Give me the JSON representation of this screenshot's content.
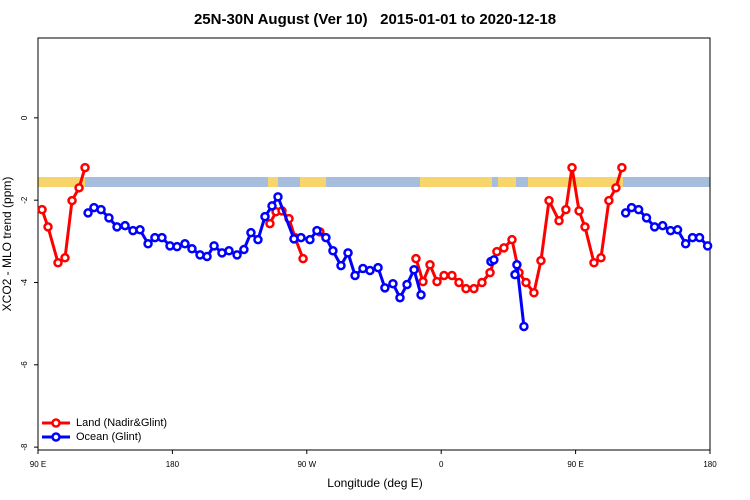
{
  "chart_data": {
    "type": "line",
    "title": "25N-30N August (Ver 10)   2015-01-01 to 2020-12-18",
    "x_label": "Longitude (deg E)",
    "y_label": "XCO2 - MLO trend (ppm)",
    "xlim": [
      90,
      540
    ],
    "ylim": [
      -8.07,
      1.94
    ],
    "xticks": [
      {
        "value": 90,
        "label": "90 E"
      },
      {
        "value": 180,
        "label": "180"
      },
      {
        "value": 270,
        "label": "90 W"
      },
      {
        "value": 360,
        "label": "0"
      },
      {
        "value": 450,
        "label": "90 E"
      },
      {
        "value": 540,
        "label": "180"
      }
    ],
    "yticks": [
      -8,
      -6,
      -4,
      -2,
      0
    ],
    "legend": "bottom-left",
    "series": [
      {
        "name": "Land (Nadir&Glint)",
        "color": "#ff0000",
        "x": [
          92.7,
          96.7,
          103.4,
          108.1,
          112.8,
          117.5,
          121.5,
          null,
          245.3,
          249.4,
          253.4,
          258.1,
          262.1,
          267.5,
          null,
          278.8,
          null,
          343.1,
          347.8,
          352.5,
          357.2,
          361.9,
          367.2,
          371.9,
          376.6,
          381.9,
          387.3,
          392.7,
          397.3,
          402.0,
          407.4,
          412.1,
          416.8,
          422.1,
          426.8,
          432.2,
          438.9,
          443.5,
          447.6,
          452.3,
          456.3,
          462.3,
          467.0,
          472.3,
          477.0,
          481.0
        ],
        "values": [
          -2.23,
          -2.65,
          -3.52,
          -3.4,
          -2.01,
          -1.7,
          -1.21,
          null,
          -2.57,
          -2.28,
          -2.26,
          -2.45,
          -2.91,
          -3.42,
          null,
          -2.77,
          null,
          -3.42,
          -3.98,
          -3.57,
          -3.98,
          -3.83,
          -3.83,
          -4.0,
          -4.15,
          -4.15,
          -4.0,
          -3.76,
          -3.25,
          -3.16,
          -2.96,
          -3.76,
          -4.0,
          -4.25,
          -3.47,
          -2.01,
          -2.5,
          -2.23,
          -1.21,
          -2.26,
          -2.65,
          -3.52,
          -3.4,
          -2.01,
          -1.7,
          -1.21
        ]
      },
      {
        "name": "Ocean (Glint)",
        "color": "#0000ff",
        "x": [
          123.5,
          127.5,
          132.2,
          137.5,
          142.9,
          148.3,
          153.6,
          158.3,
          163.7,
          168.3,
          173.0,
          178.4,
          183.1,
          188.4,
          193.1,
          198.5,
          203.2,
          207.9,
          213.2,
          217.9,
          223.3,
          227.9,
          232.6,
          237.3,
          242.0,
          246.7,
          250.7,
          261.4,
          266.1,
          272.1,
          276.8,
          282.8,
          287.5,
          292.9,
          297.6,
          302.3,
          307.6,
          312.3,
          317.7,
          322.3,
          327.7,
          332.4,
          337.1,
          341.8,
          346.5,
          null,
          393.3,
          395.3,
          null,
          409.4,
          410.7,
          415.4,
          null,
          483.5,
          487.5,
          492.2,
          497.5,
          502.9,
          508.3,
          513.6,
          518.3,
          523.7,
          528.3,
          533.0,
          538.4
        ],
        "values": [
          -2.31,
          -2.18,
          -2.23,
          -2.43,
          -2.65,
          -2.62,
          -2.74,
          -2.72,
          -3.06,
          -2.91,
          -2.91,
          -3.11,
          -3.13,
          -3.06,
          -3.18,
          -3.33,
          -3.37,
          -3.11,
          -3.28,
          -3.23,
          -3.33,
          -3.2,
          -2.79,
          -2.96,
          -2.4,
          -2.14,
          -1.92,
          -2.94,
          -2.91,
          -2.96,
          -2.74,
          -2.91,
          -3.23,
          -3.59,
          -3.28,
          -3.83,
          -3.66,
          -3.71,
          -3.64,
          -4.13,
          -4.03,
          -4.37,
          -4.05,
          -3.69,
          -4.3,
          null,
          -3.49,
          -3.45,
          null,
          -3.81,
          -3.57,
          -5.07,
          null,
          -2.31,
          -2.18,
          -2.23,
          -2.43,
          -2.65,
          -2.62,
          -2.74,
          -2.72,
          -3.06,
          -2.91,
          -2.91,
          -3.11
        ]
      }
    ]
  }
}
